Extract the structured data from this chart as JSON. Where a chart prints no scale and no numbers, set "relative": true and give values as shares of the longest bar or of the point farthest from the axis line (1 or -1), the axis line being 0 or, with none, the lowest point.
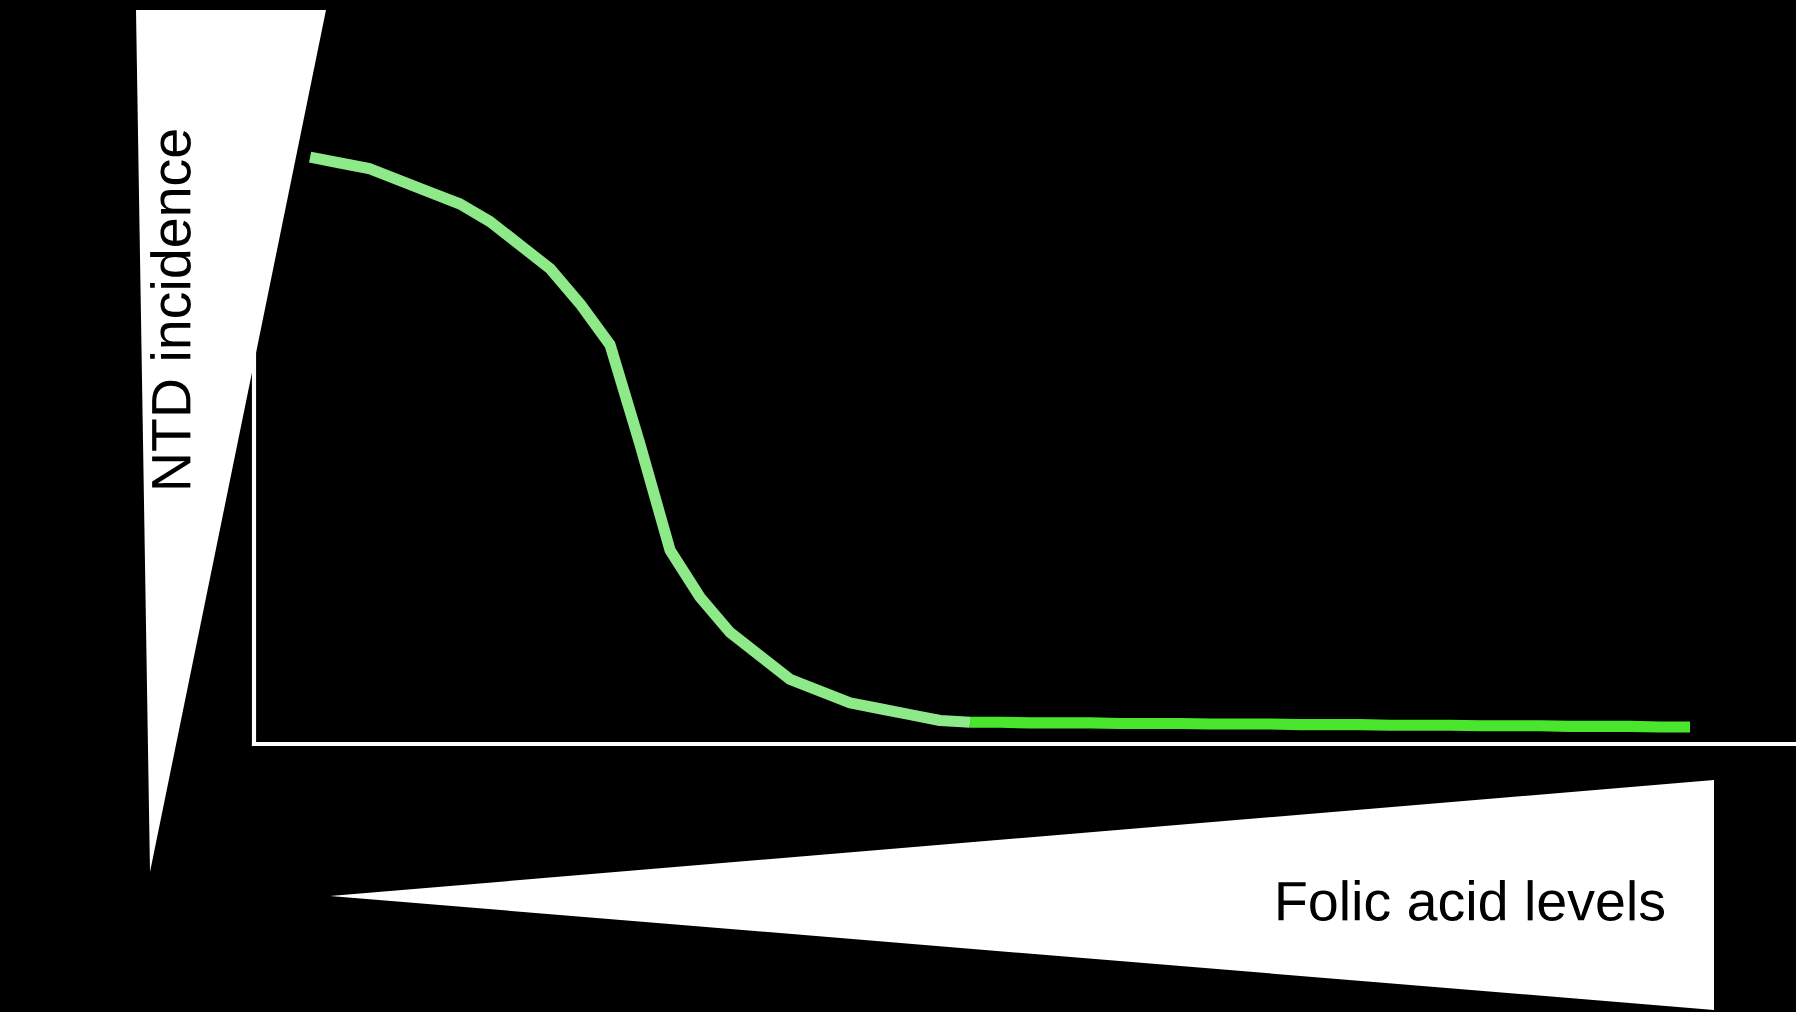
{
  "chart_data": {
    "type": "line",
    "relative": true,
    "xlabel": "Folic acid levels",
    "ylabel": "NTD incidence",
    "grid": false,
    "legend": false,
    "marker": "none",
    "line_style": "solid",
    "categories": [
      null,
      null,
      null,
      null,
      null,
      null,
      null,
      null,
      null,
      null,
      null,
      null,
      null,
      null,
      null,
      null,
      null,
      null,
      null,
      null,
      null,
      null,
      null,
      null,
      null,
      null,
      null,
      null,
      null,
      null,
      null,
      null,
      null,
      null,
      null,
      null,
      null,
      null,
      null,
      null,
      null,
      null,
      null,
      null,
      null,
      null,
      null
    ],
    "series": [
      {
        "color": "#8eea88",
        "values": [
          1.0,
          0.99,
          0.98,
          0.96,
          0.94,
          0.92,
          0.89,
          0.85,
          0.81,
          0.75,
          0.68,
          0.51,
          0.33,
          0.25,
          0.19,
          0.15,
          0.11,
          0.09,
          0.07,
          0.06,
          0.05,
          0.04,
          0.037,
          null,
          null,
          null,
          null,
          null,
          null,
          null,
          null,
          null,
          null,
          null,
          null,
          null,
          null,
          null,
          null,
          null,
          null,
          null,
          null,
          null,
          null,
          null,
          null
        ]
      },
      {
        "color": "#4ae62e",
        "values": [
          null,
          null,
          null,
          null,
          null,
          null,
          null,
          null,
          null,
          null,
          null,
          null,
          null,
          null,
          null,
          null,
          null,
          null,
          null,
          null,
          null,
          null,
          0.037,
          0.037,
          0.036,
          0.036,
          0.036,
          0.035,
          0.035,
          0.035,
          0.034,
          0.034,
          0.034,
          0.033,
          0.033,
          0.033,
          0.032,
          0.032,
          0.032,
          0.031,
          0.031,
          0.031,
          0.03,
          0.03,
          0.03,
          0.029,
          0.029
        ]
      }
    ]
  }
}
